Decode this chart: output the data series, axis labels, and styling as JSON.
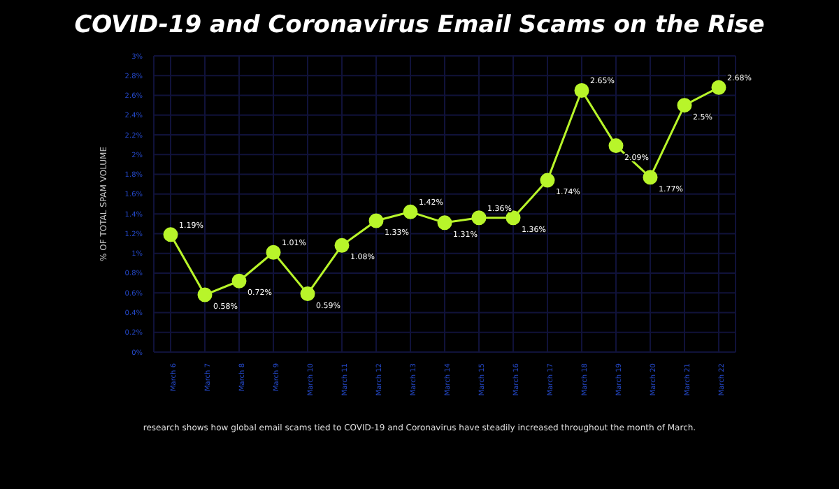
{
  "chart_data": {
    "type": "line",
    "title": "COVID-19 and Coronavirus Email Scams on the Rise",
    "ylabel": "% OF TOTAL SPAM VOLUME",
    "categories": [
      "March 6",
      "March 7",
      "March 8",
      "March 9",
      "March 10",
      "March 11",
      "March 12",
      "March 13",
      "March 14",
      "March 15",
      "March 16",
      "March 17",
      "March 18",
      "March 19",
      "March 20",
      "March 21",
      "March 22"
    ],
    "series": [
      {
        "color": "#b8f52a",
        "values": [
          1.19,
          0.58,
          0.72,
          1.01,
          0.59,
          1.08,
          1.33,
          1.42,
          1.31,
          1.36,
          1.36,
          1.74,
          2.65,
          2.09,
          1.77,
          2.5,
          2.68
        ],
        "value_labels": [
          "1.19%",
          "0.58%",
          "0.72%",
          "1.01%",
          "0.59%",
          "1.08%",
          "1.33%",
          "1.42%",
          "1.31%",
          "1.36%",
          "1.36%",
          "1.74%",
          "2.65%",
          "2.09%",
          "1.77%",
          "2.5%",
          "2.68%"
        ]
      }
    ],
    "ylim": [
      0,
      3
    ],
    "yticks": [
      {
        "value": 0,
        "label": "0%"
      },
      {
        "value": 0.2,
        "label": "0.2%"
      },
      {
        "value": 0.4,
        "label": "0.4%"
      },
      {
        "value": 0.6,
        "label": "0.6%"
      },
      {
        "value": 0.8,
        "label": "0.8%"
      },
      {
        "value": 1,
        "label": "1%"
      },
      {
        "value": 1.2,
        "label": "1.2%"
      },
      {
        "value": 1.4,
        "label": "1.4%"
      },
      {
        "value": 1.6,
        "label": "1.6%"
      },
      {
        "value": 1.8,
        "label": "1.8%"
      },
      {
        "value": 2,
        "label": "2%"
      },
      {
        "value": 2.2,
        "label": "2.2%"
      },
      {
        "value": 2.4,
        "label": "2.4%"
      },
      {
        "value": 2.6,
        "label": "2.6%"
      },
      {
        "value": 2.8,
        "label": "2.8%"
      },
      {
        "value": 3,
        "label": "3%"
      }
    ],
    "grid": true,
    "marker": "circle",
    "line_style": "solid",
    "legend": false,
    "annotations": [
      "research shows how global email scams tied to COVID-19 and Coronavirus have steadily increased throughout the month of March."
    ]
  }
}
